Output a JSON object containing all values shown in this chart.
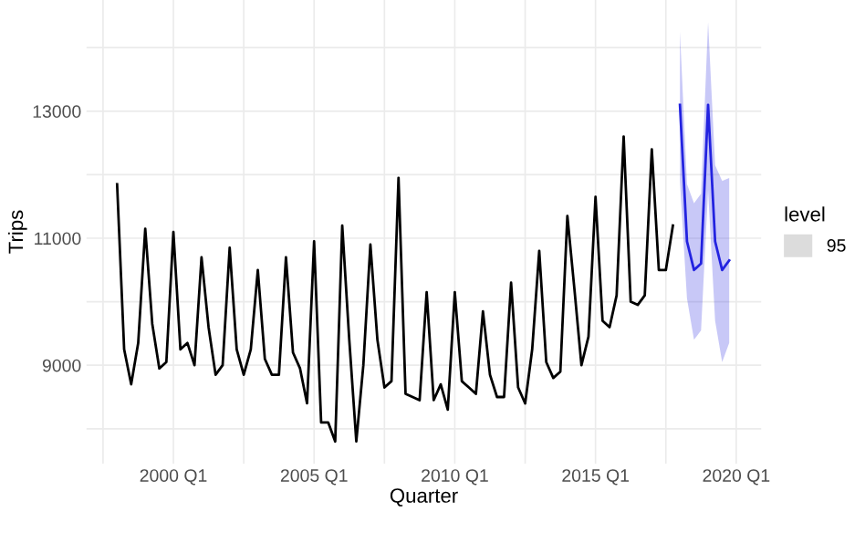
{
  "chart_data": {
    "type": "line",
    "xlabel": "Quarter",
    "ylabel": "Trips",
    "legend_title": "level",
    "legend": "right",
    "grid": true,
    "categories": [
      null,
      null,
      null,
      null,
      null,
      null,
      null,
      null,
      "2000 Q1",
      null,
      null,
      null,
      null,
      null,
      null,
      null,
      null,
      null,
      null,
      null,
      null,
      null,
      null,
      null,
      null,
      null,
      null,
      null,
      "2005 Q1",
      null,
      null,
      null,
      null,
      null,
      null,
      null,
      null,
      null,
      null,
      null,
      null,
      null,
      null,
      null,
      null,
      null,
      null,
      null,
      "2010 Q1",
      null,
      null,
      null,
      null,
      null,
      null,
      null,
      null,
      null,
      null,
      null,
      null,
      null,
      null,
      null,
      null,
      null,
      null,
      null,
      "2015 Q1",
      null,
      null,
      null,
      null,
      null,
      null,
      null,
      null,
      null,
      null,
      null,
      null,
      null,
      null,
      null,
      null,
      null,
      null,
      null,
      "2020 Q1"
    ],
    "ylim": [
      7450,
      14750
    ],
    "yticks": [
      {
        "value": 8000,
        "label": null
      },
      9000,
      {
        "value": 10000,
        "label": null
      },
      11000,
      {
        "value": 12000,
        "label": null
      },
      13000,
      {
        "value": 14000,
        "label": null
      }
    ],
    "series": [
      {
        "color": "#000000",
        "values": [
          11850,
          9250,
          8700,
          9350,
          11150,
          9650,
          8950,
          9050,
          11100,
          9250,
          9350,
          9000,
          10700,
          9600,
          8850,
          9000,
          10850,
          9250,
          8850,
          9250,
          10500,
          9100,
          8850,
          8850,
          10700,
          9200,
          8950,
          8400,
          10950,
          8100,
          8100,
          7800,
          11200,
          9400,
          7800,
          9000,
          10900,
          9400,
          8650,
          8750,
          11950,
          8550,
          8500,
          8450,
          10150,
          8450,
          8700,
          8300,
          10150,
          8750,
          8650,
          8550,
          9850,
          8850,
          8500,
          8500,
          10300,
          8650,
          8400,
          9250,
          10800,
          9050,
          8800,
          8900,
          11350,
          10200,
          9000,
          9450,
          11650,
          9700,
          9600,
          10100,
          12600,
          10000,
          9950,
          10100,
          12400,
          10500,
          10500,
          11200,
          null,
          null,
          null,
          null,
          null,
          null,
          null,
          null,
          null
        ]
      },
      {
        "name": "95",
        "color": "#2323e0",
        "values": [
          null,
          null,
          null,
          null,
          null,
          null,
          null,
          null,
          null,
          null,
          null,
          null,
          null,
          null,
          null,
          null,
          null,
          null,
          null,
          null,
          null,
          null,
          null,
          null,
          null,
          null,
          null,
          null,
          null,
          null,
          null,
          null,
          null,
          null,
          null,
          null,
          null,
          null,
          null,
          null,
          null,
          null,
          null,
          null,
          null,
          null,
          null,
          null,
          null,
          null,
          null,
          null,
          null,
          null,
          null,
          null,
          null,
          null,
          null,
          null,
          null,
          null,
          null,
          null,
          null,
          null,
          null,
          null,
          null,
          null,
          null,
          null,
          null,
          null,
          null,
          null,
          null,
          null,
          null,
          null,
          13100,
          10950,
          10500,
          10600,
          13100,
          10950,
          10500,
          10650,
          null
        ],
        "upper": [
          null,
          null,
          null,
          null,
          null,
          null,
          null,
          null,
          null,
          null,
          null,
          null,
          null,
          null,
          null,
          null,
          null,
          null,
          null,
          null,
          null,
          null,
          null,
          null,
          null,
          null,
          null,
          null,
          null,
          null,
          null,
          null,
          null,
          null,
          null,
          null,
          null,
          null,
          null,
          null,
          null,
          null,
          null,
          null,
          null,
          null,
          null,
          null,
          null,
          null,
          null,
          null,
          null,
          null,
          null,
          null,
          null,
          null,
          null,
          null,
          null,
          null,
          null,
          null,
          null,
          null,
          null,
          null,
          null,
          null,
          null,
          null,
          null,
          null,
          null,
          null,
          null,
          null,
          null,
          null,
          14250,
          11850,
          11550,
          11700,
          14400,
          12150,
          11900,
          11950,
          null
        ],
        "lower": [
          null,
          null,
          null,
          null,
          null,
          null,
          null,
          null,
          null,
          null,
          null,
          null,
          null,
          null,
          null,
          null,
          null,
          null,
          null,
          null,
          null,
          null,
          null,
          null,
          null,
          null,
          null,
          null,
          null,
          null,
          null,
          null,
          null,
          null,
          null,
          null,
          null,
          null,
          null,
          null,
          null,
          null,
          null,
          null,
          null,
          null,
          null,
          null,
          null,
          null,
          null,
          null,
          null,
          null,
          null,
          null,
          null,
          null,
          null,
          null,
          null,
          null,
          null,
          null,
          null,
          null,
          null,
          null,
          null,
          null,
          null,
          null,
          null,
          null,
          null,
          null,
          null,
          null,
          null,
          null,
          11900,
          10050,
          9400,
          9550,
          11750,
          9700,
          9050,
          9350,
          null
        ]
      }
    ]
  }
}
